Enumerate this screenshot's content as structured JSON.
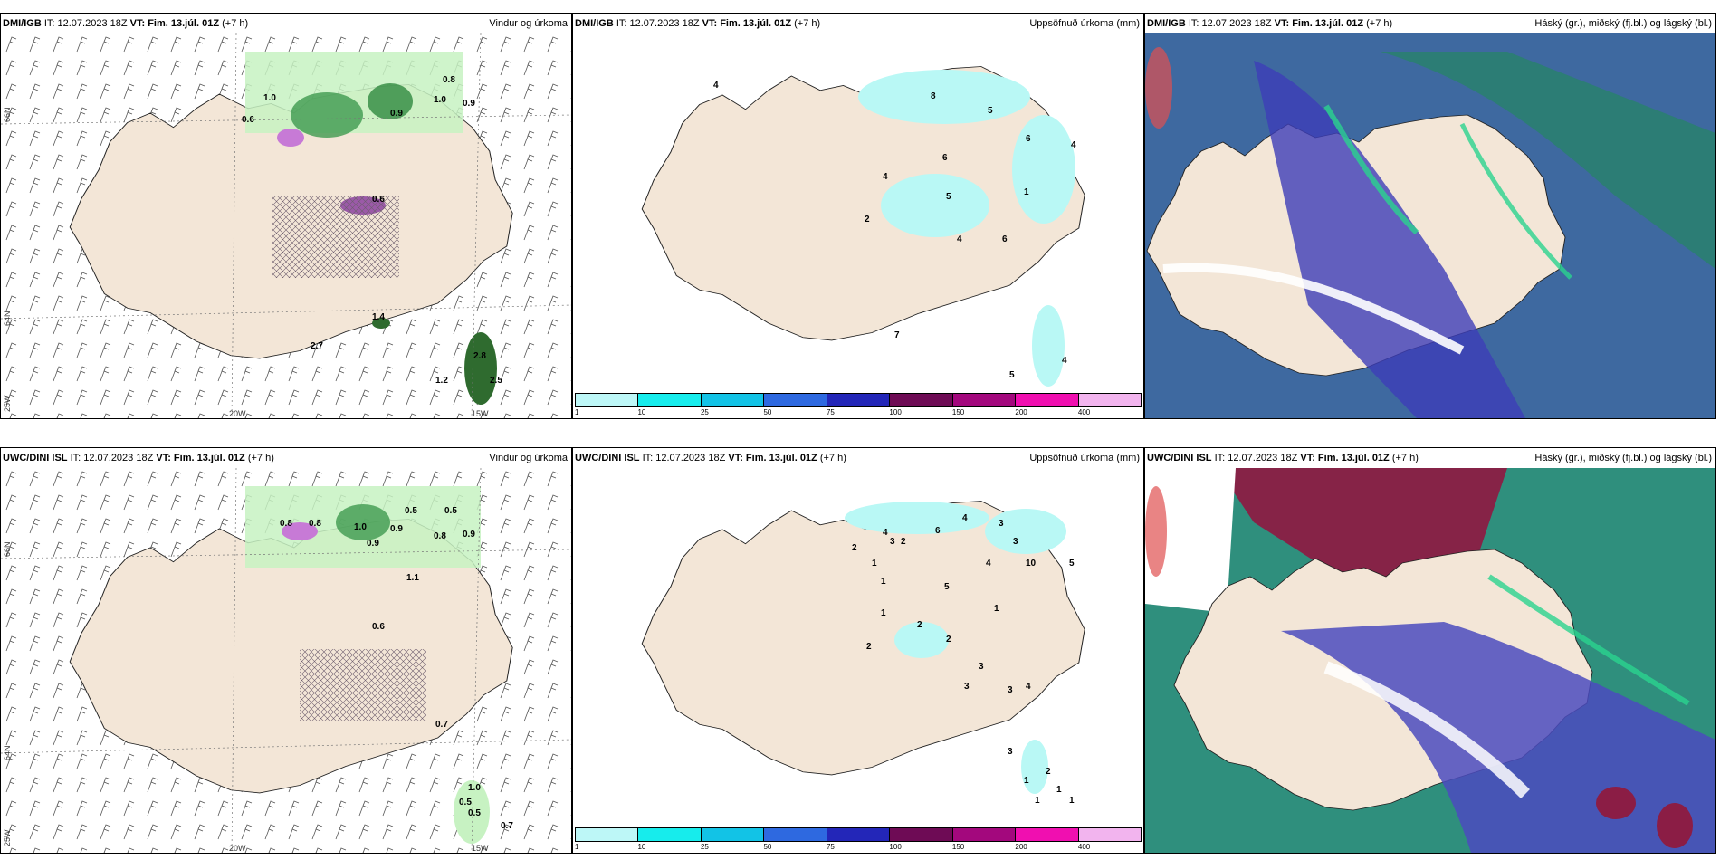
{
  "colors": {
    "land": "#f3e6d7",
    "sea": "#ffffff",
    "precip_light": "#b9f8f5",
    "precip_green_light": "#c7f2c2",
    "precip_green_dark": "#2f8a3f",
    "snow_purple": "#c77ad6",
    "cloud_high": "#8b1d45",
    "cloud_mid": "#4b4bbe",
    "cloud_low": "#2f8f7d"
  },
  "top_row": {
    "model": "DMI/IGB",
    "init_label": "IT: 12.07.2023 18Z",
    "valid_label": "VT: Fim. 13.júl. 01Z",
    "lead": "(+7 h)"
  },
  "bottom_row": {
    "model": "UWC/DINI ISL",
    "init_label": "IT: 12.07.2023 18Z",
    "valid_label": "VT: Fim. 13.júl. 01Z",
    "lead": "(+7 h)"
  },
  "panel_titles": {
    "wind": "Vindur og úrkoma",
    "precip": "Uppsöfnuð úrkoma (mm)",
    "cloud": "Háský (gr.), miðský (fj.bl.) og lágský (bl.)"
  },
  "axis_labels": {
    "lat_66": "66N",
    "lat_64": "64N",
    "lon_25": "25W",
    "lon_20": "20W",
    "lon_15": "15W"
  },
  "legend": {
    "colors": [
      "#bdf7f7",
      "#17ecec",
      "#12c3e6",
      "#2e69e0",
      "#2326b8",
      "#6e0b55",
      "#a3087d",
      "#f00fb0",
      "#f2b4ee"
    ],
    "ticks": [
      "1",
      "10",
      "25",
      "50",
      "75",
      "100",
      "150",
      "200",
      "400"
    ]
  },
  "wind_values_top": [
    "1.0",
    "0.6",
    "0.9",
    "0.8",
    "1.0",
    "0.9",
    "0.6",
    "2.7",
    "2.8",
    "2.5",
    "1.2",
    "1.4"
  ],
  "wind_values_bottom": [
    "0.8",
    "0.8",
    "0.9",
    "1.0",
    "0.9",
    "0.5",
    "0.5",
    "0.8",
    "0.9",
    "1.1",
    "0.6",
    "0.7",
    "1.0",
    "0.5",
    "0.5",
    "0.7"
  ],
  "precip_values_top": [
    "4",
    "8",
    "5",
    "6",
    "4",
    "6",
    "4",
    "5",
    "1",
    "2",
    "4",
    "6",
    "7",
    "4",
    "5"
  ],
  "precip_values_bottom": [
    "2",
    "1",
    "4",
    "3",
    "2",
    "6",
    "4",
    "3",
    "3",
    "4",
    "10",
    "5",
    "1",
    "1",
    "5",
    "2",
    "1",
    "2",
    "3",
    "2",
    "3",
    "3",
    "4",
    "3",
    "2",
    "1",
    "1",
    "1",
    "1"
  ]
}
